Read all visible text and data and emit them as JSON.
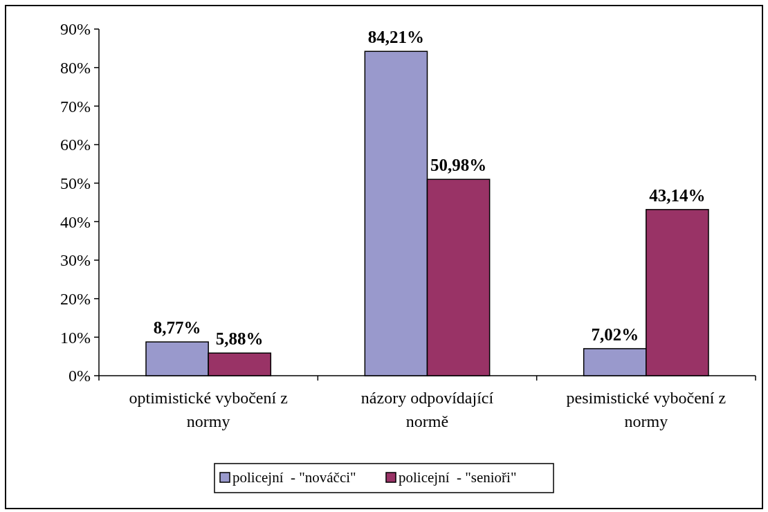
{
  "chart_data": {
    "type": "bar",
    "categories": [
      "optimistické vybočení z normy",
      "názory odpovídající normě",
      "pesimistické vybočení z normy"
    ],
    "series": [
      {
        "name": "policejní  - \"nováčci\"",
        "color": "#9999cc",
        "values": [
          8.77,
          84.21,
          7.02
        ],
        "value_labels": [
          "8,77%",
          "84,21%",
          "7,02%"
        ]
      },
      {
        "name": "policejní  - \"senioři\"",
        "color": "#993366",
        "values": [
          5.88,
          50.98,
          43.14
        ],
        "value_labels": [
          "5,88%",
          "50,98%",
          "43,14%"
        ]
      }
    ],
    "ylim": [
      0,
      90
    ],
    "yticks": [
      {
        "value": 0,
        "label": "0%"
      },
      {
        "value": 10,
        "label": "10%"
      },
      {
        "value": 20,
        "label": "20%"
      },
      {
        "value": 30,
        "label": "30%"
      },
      {
        "value": 40,
        "label": "40%"
      },
      {
        "value": 50,
        "label": "50%"
      },
      {
        "value": 60,
        "label": "60%"
      },
      {
        "value": 70,
        "label": "70%"
      },
      {
        "value": 80,
        "label": "80%"
      },
      {
        "value": 90,
        "label": "90%"
      }
    ],
    "legend": "bottom"
  }
}
